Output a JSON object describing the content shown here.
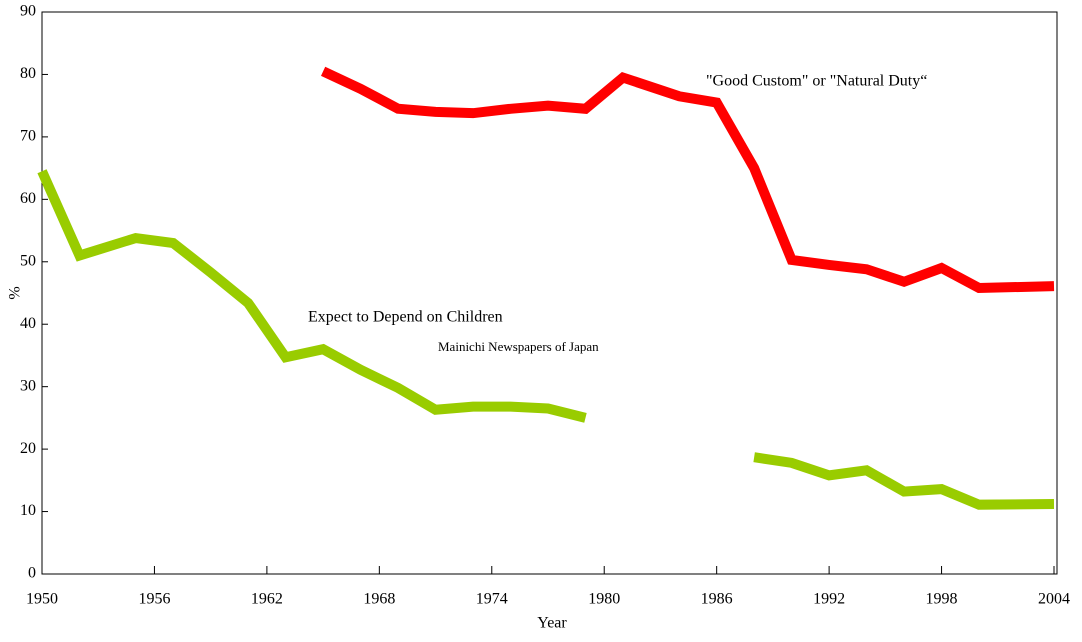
{
  "chart_data": {
    "type": "line",
    "xlabel": "Year",
    "ylabel": "%",
    "annotations": [
      "\"Good Custom\" or \"Natural Duty“",
      "Expect to Depend on Children",
      "Mainichi Newspapers of Japan"
    ],
    "x": [
      1950,
      1952,
      1955,
      1957,
      1959,
      1961,
      1963,
      1965,
      1967,
      1969,
      1971,
      1973,
      1975,
      1977,
      1979,
      1981,
      1984,
      1986,
      1988,
      1990,
      1992,
      1994,
      1996,
      1998,
      2000,
      2004
    ],
    "series": [
      {
        "name": "\"Good Custom\" or \"Natural Duty“",
        "color": "#ff0000",
        "values": [
          null,
          null,
          null,
          null,
          null,
          null,
          null,
          80.5,
          77.7,
          74.5,
          74,
          73.8,
          74.5,
          75,
          74.5,
          79.5,
          76.5,
          75.5,
          65,
          50.3,
          49.5,
          48.8,
          46.8,
          49,
          45.8,
          46.1
        ]
      },
      {
        "name": "Expect to Depend on Children",
        "color": "#99cc00",
        "values": [
          64.5,
          51,
          53.8,
          53,
          48.3,
          43.4,
          34.7,
          36,
          32.7,
          29.8,
          26.3,
          26.8,
          26.8,
          26.5,
          25,
          null,
          null,
          null,
          18.7,
          17.8,
          15.8,
          16.6,
          13.2,
          13.6,
          11.1,
          11.2
        ]
      }
    ],
    "xlim": [
      1950,
      2004
    ],
    "xticks": [
      1950,
      1956,
      1962,
      1968,
      1974,
      1980,
      1986,
      1992,
      1998,
      2004
    ],
    "ylim": [
      0,
      90
    ],
    "yticks": [
      0,
      10,
      20,
      30,
      40,
      50,
      60,
      70,
      80,
      90
    ]
  }
}
